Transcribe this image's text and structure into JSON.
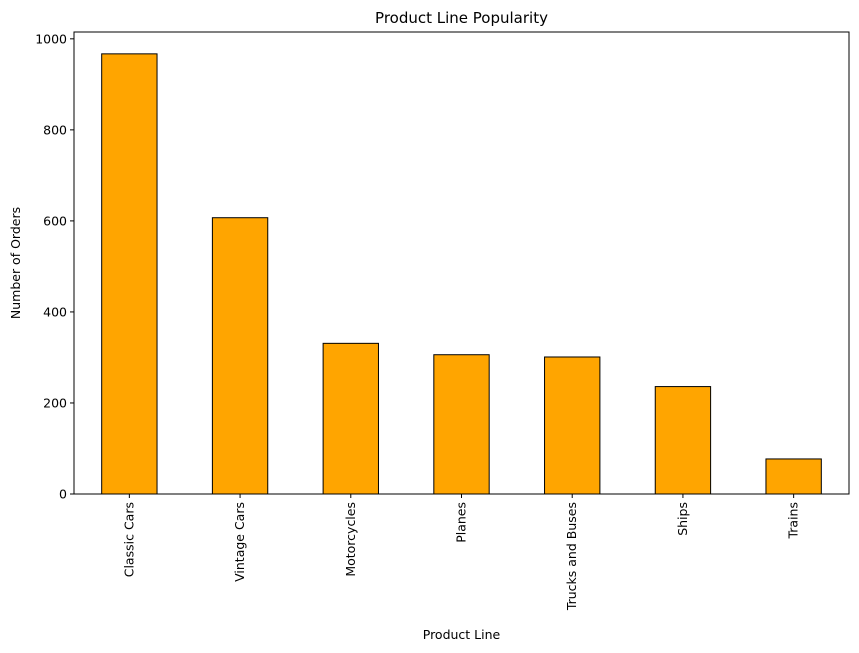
{
  "chart_data": {
    "type": "bar",
    "title": "Product Line Popularity",
    "xlabel": "Product Line",
    "ylabel": "Number of Orders",
    "categories": [
      "Classic Cars",
      "Vintage Cars",
      "Motorcycles",
      "Planes",
      "Trucks and Buses",
      "Ships",
      "Trains"
    ],
    "values": [
      967,
      607,
      331,
      306,
      301,
      236,
      77
    ],
    "ylim": [
      0,
      1015
    ],
    "yticks": [
      0,
      200,
      400,
      600,
      800,
      1000
    ],
    "grid": false,
    "legend": "none",
    "colors": {
      "bar_fill": "#FFA500",
      "bar_edge": "#000000",
      "axis": "#000000"
    }
  }
}
